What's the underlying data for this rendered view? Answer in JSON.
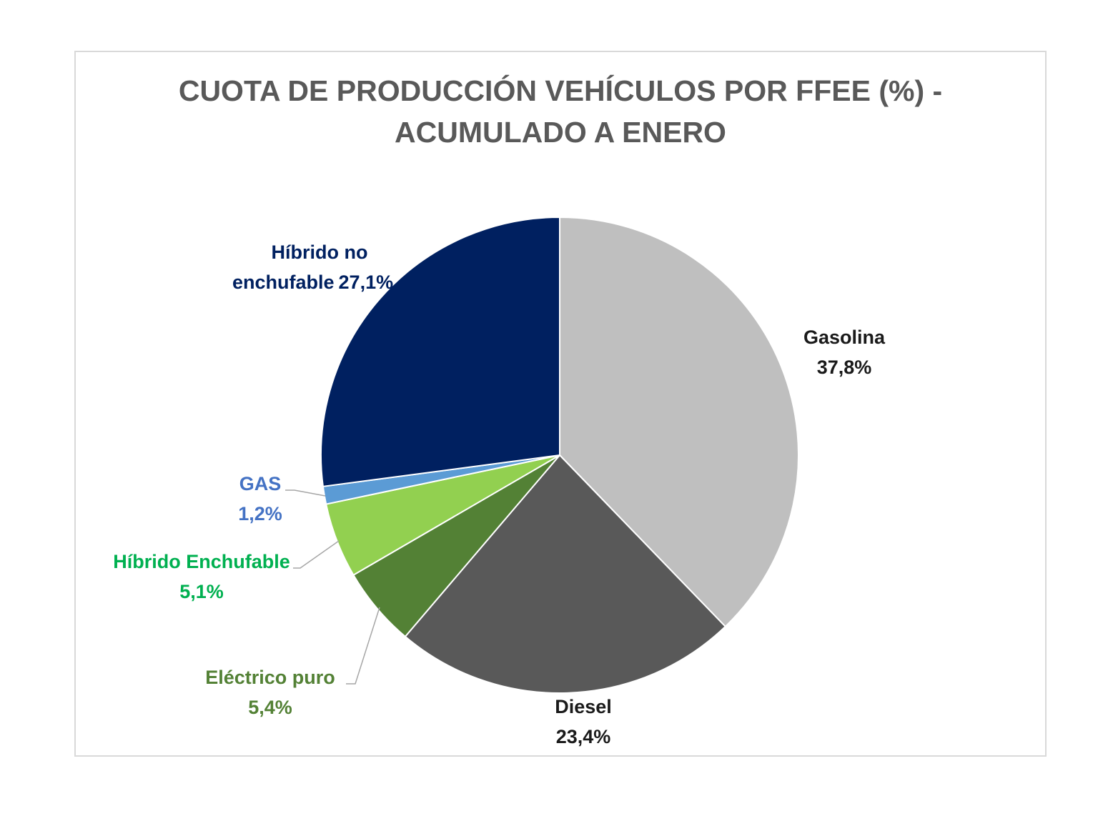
{
  "chart_data": {
    "type": "pie",
    "title": "CUOTA DE PRODUCCIÓN VEHÍCULOS POR FFEE (%)  - ACUMULADO A ENERO",
    "title_lines": [
      "CUOTA DE PRODUCCIÓN VEHÍCULOS POR FFEE (%)  -",
      "ACUMULADO A ENERO"
    ],
    "unit": "%",
    "slices": [
      {
        "label": "Gasolina",
        "value_label": "37,8%",
        "value": 37.8,
        "color": "#bfbfbf",
        "label_color": "#1a1a1a"
      },
      {
        "label": "Diesel",
        "value_label": "23,4%",
        "value": 23.4,
        "color": "#595959",
        "label_color": "#1a1a1a"
      },
      {
        "label": "Eléctrico puro",
        "value_label": "5,4%",
        "value": 5.4,
        "color": "#538135",
        "label_color": "#538135"
      },
      {
        "label": "Híbrido Enchufable",
        "value_label": "5,1%",
        "value": 5.1,
        "color": "#92d050",
        "label_color": "#00b050"
      },
      {
        "label": "GAS",
        "value_label": "1,2%",
        "value": 1.2,
        "color": "#5b9bd5",
        "label_color": "#4472c4"
      },
      {
        "label": "Híbrido no enchufable",
        "value_label": "27,1%",
        "value": 27.1,
        "color": "#002060",
        "label_color": "#002060",
        "label_lines": [
          "Híbrido no",
          "enchufable"
        ]
      }
    ],
    "legend": "none",
    "data_labels": "category name and percentage"
  }
}
